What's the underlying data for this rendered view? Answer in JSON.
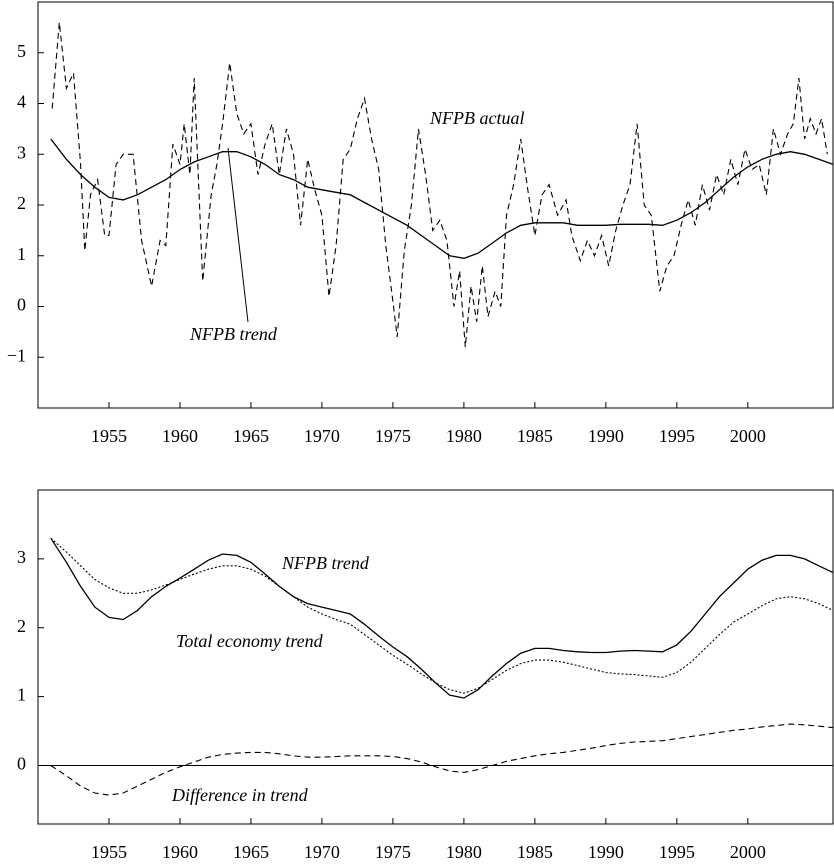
{
  "chart_data": [
    {
      "type": "line",
      "xlim": [
        1950,
        2006
      ],
      "ylim": [
        -2,
        6
      ],
      "xticks": [
        1955,
        1960,
        1965,
        1970,
        1975,
        1980,
        1985,
        1990,
        1995,
        2000
      ],
      "yticks": [
        {
          "value": -1,
          "label": "−1"
        },
        0,
        1,
        2,
        3,
        4,
        5
      ],
      "annotations": [
        "NFPB actual",
        "NFPB trend"
      ],
      "series": [
        {
          "name": "NFPB actual",
          "color": "#000000",
          "style": "dashed",
          "x": [
            1951.0,
            1951.5,
            1952.0,
            1952.5,
            1953.0,
            1953.3,
            1953.7,
            1954.2,
            1954.7,
            1955.0,
            1955.5,
            1956.0,
            1956.7,
            1957.3,
            1958.0,
            1958.6,
            1959.0,
            1959.5,
            1960.0,
            1960.3,
            1960.7,
            1961.0,
            1961.6,
            1962.2,
            1962.6,
            1963.0,
            1963.5,
            1964.0,
            1964.5,
            1965.0,
            1965.5,
            1966.0,
            1966.5,
            1967.0,
            1967.5,
            1968.0,
            1968.5,
            1969.0,
            1969.5,
            1970.0,
            1970.5,
            1971.0,
            1971.5,
            1972.0,
            1972.5,
            1973.0,
            1973.5,
            1974.0,
            1974.5,
            1975.0,
            1975.3,
            1975.8,
            1976.3,
            1976.8,
            1977.3,
            1977.8,
            1978.3,
            1978.8,
            1979.3,
            1979.7,
            1980.1,
            1980.5,
            1980.9,
            1981.3,
            1981.7,
            1982.2,
            1982.6,
            1983.0,
            1983.5,
            1984.0,
            1984.5,
            1985.0,
            1985.5,
            1986.0,
            1986.6,
            1987.2,
            1987.6,
            1988.2,
            1988.7,
            1989.2,
            1989.7,
            1990.2,
            1990.7,
            1991.2,
            1991.7,
            1992.2,
            1992.7,
            1993.2,
            1993.8,
            1994.3,
            1994.8,
            1995.3,
            1995.8,
            1996.3,
            1996.8,
            1997.3,
            1997.8,
            1998.3,
            1998.8,
            1999.3,
            1999.8,
            2000.3,
            2000.8,
            2001.3,
            2001.8,
            2002.3,
            2002.8,
            2003.2,
            2003.6,
            2004.0,
            2004.4,
            2004.8,
            2005.2,
            2005.6
          ],
          "values": [
            3.9,
            5.6,
            4.3,
            4.6,
            2.8,
            1.1,
            2.2,
            2.5,
            1.4,
            1.4,
            2.8,
            3.0,
            3.0,
            1.3,
            0.4,
            1.3,
            1.2,
            3.2,
            2.8,
            3.6,
            2.6,
            4.5,
            0.5,
            2.2,
            2.8,
            3.6,
            4.8,
            3.8,
            3.4,
            3.6,
            2.6,
            3.2,
            3.6,
            2.6,
            3.5,
            3.0,
            1.6,
            2.9,
            2.3,
            1.8,
            0.2,
            1.2,
            2.9,
            3.1,
            3.7,
            4.1,
            3.3,
            2.7,
            1.2,
            0.1,
            -0.6,
            1.1,
            2.0,
            3.5,
            2.6,
            1.5,
            1.7,
            1.3,
            0.0,
            0.7,
            -0.8,
            0.4,
            -0.3,
            0.8,
            -0.2,
            0.3,
            0.0,
            1.8,
            2.4,
            3.3,
            2.3,
            1.4,
            2.2,
            2.4,
            1.8,
            2.1,
            1.4,
            0.9,
            1.3,
            1.0,
            1.4,
            0.8,
            1.5,
            2.0,
            2.4,
            3.6,
            2.0,
            1.8,
            0.3,
            0.8,
            1.0,
            1.6,
            2.1,
            1.6,
            2.4,
            1.9,
            2.6,
            2.2,
            2.9,
            2.4,
            3.1,
            2.7,
            2.8,
            2.2,
            3.5,
            3.0,
            3.4,
            3.6,
            4.5,
            3.3,
            3.7,
            3.4,
            3.7,
            3.0
          ]
        },
        {
          "name": "NFPB trend",
          "color": "#000000",
          "style": "solid",
          "x": [
            1950.9,
            1952,
            1953,
            1954,
            1955,
            1956,
            1957,
            1958,
            1959,
            1960,
            1961,
            1962,
            1963,
            1964,
            1965,
            1966,
            1967,
            1968,
            1969,
            1970,
            1971,
            1972,
            1973,
            1974,
            1975,
            1976,
            1977,
            1978,
            1979,
            1980,
            1981,
            1982,
            1983,
            1984,
            1985,
            1986,
            1987,
            1988,
            1989,
            1990,
            1991,
            1992,
            1993,
            1994,
            1995,
            1996,
            1997,
            1998,
            1999,
            2000,
            2001,
            2002,
            2003,
            2004,
            2005,
            2006
          ],
          "values": [
            3.3,
            2.9,
            2.6,
            2.35,
            2.15,
            2.1,
            2.2,
            2.35,
            2.5,
            2.7,
            2.85,
            2.95,
            3.05,
            3.05,
            2.95,
            2.8,
            2.6,
            2.5,
            2.35,
            2.3,
            2.25,
            2.2,
            2.05,
            1.9,
            1.75,
            1.6,
            1.4,
            1.2,
            1.0,
            0.95,
            1.05,
            1.25,
            1.45,
            1.6,
            1.65,
            1.65,
            1.65,
            1.6,
            1.6,
            1.6,
            1.62,
            1.62,
            1.62,
            1.6,
            1.7,
            1.85,
            2.05,
            2.3,
            2.55,
            2.75,
            2.9,
            3.0,
            3.05,
            3.0,
            2.9,
            2.8
          ]
        }
      ]
    },
    {
      "type": "line",
      "xlim": [
        1950,
        2006
      ],
      "ylim": [
        -0.85,
        4
      ],
      "xticks": [
        1955,
        1960,
        1965,
        1970,
        1975,
        1980,
        1985,
        1990,
        1995,
        2000
      ],
      "yticks": [
        0,
        1,
        2,
        3
      ],
      "annotations": [
        "NFPB trend",
        "Total economy trend",
        "Difference in trend"
      ],
      "series": [
        {
          "name": "NFPB trend",
          "color": "#000000",
          "style": "solid",
          "x": [
            1950.9,
            1952,
            1953,
            1954,
            1955,
            1956,
            1957,
            1958,
            1959,
            1960,
            1961,
            1962,
            1963,
            1964,
            1965,
            1966,
            1967,
            1968,
            1969,
            1970,
            1971,
            1972,
            1973,
            1974,
            1975,
            1976,
            1977,
            1978,
            1979,
            1980,
            1981,
            1982,
            1983,
            1984,
            1985,
            1986,
            1987,
            1988,
            1989,
            1990,
            1991,
            1992,
            1993,
            1994,
            1995,
            1996,
            1997,
            1998,
            1999,
            2000,
            2001,
            2002,
            2003,
            2004,
            2005,
            2006
          ],
          "values": [
            3.3,
            2.95,
            2.6,
            2.3,
            2.15,
            2.12,
            2.25,
            2.45,
            2.6,
            2.72,
            2.85,
            2.98,
            3.07,
            3.05,
            2.95,
            2.78,
            2.6,
            2.45,
            2.35,
            2.3,
            2.25,
            2.2,
            2.05,
            1.88,
            1.72,
            1.58,
            1.4,
            1.2,
            1.02,
            0.98,
            1.1,
            1.3,
            1.48,
            1.63,
            1.7,
            1.7,
            1.67,
            1.65,
            1.64,
            1.64,
            1.66,
            1.67,
            1.66,
            1.65,
            1.75,
            1.95,
            2.2,
            2.45,
            2.65,
            2.85,
            2.98,
            3.05,
            3.05,
            3.0,
            2.9,
            2.8
          ]
        },
        {
          "name": "Total economy trend",
          "color": "#000000",
          "style": "dotted",
          "x": [
            1950.9,
            1952,
            1953,
            1954,
            1955,
            1956,
            1957,
            1958,
            1959,
            1960,
            1961,
            1962,
            1963,
            1964,
            1965,
            1966,
            1967,
            1968,
            1969,
            1970,
            1971,
            1972,
            1973,
            1974,
            1975,
            1976,
            1977,
            1978,
            1979,
            1980,
            1981,
            1982,
            1983,
            1984,
            1985,
            1986,
            1987,
            1988,
            1989,
            1990,
            1991,
            1992,
            1993,
            1994,
            1995,
            1996,
            1997,
            1998,
            1999,
            2000,
            2001,
            2002,
            2003,
            2004,
            2005,
            2006
          ],
          "values": [
            3.3,
            3.1,
            2.9,
            2.7,
            2.58,
            2.5,
            2.5,
            2.55,
            2.62,
            2.7,
            2.78,
            2.85,
            2.9,
            2.9,
            2.85,
            2.75,
            2.6,
            2.45,
            2.3,
            2.2,
            2.12,
            2.05,
            1.9,
            1.75,
            1.6,
            1.47,
            1.33,
            1.2,
            1.1,
            1.05,
            1.12,
            1.25,
            1.38,
            1.48,
            1.53,
            1.53,
            1.5,
            1.45,
            1.4,
            1.35,
            1.33,
            1.32,
            1.3,
            1.28,
            1.35,
            1.5,
            1.7,
            1.9,
            2.08,
            2.2,
            2.32,
            2.42,
            2.45,
            2.42,
            2.35,
            2.25
          ]
        },
        {
          "name": "Difference in trend",
          "color": "#000000",
          "style": "dashed",
          "x": [
            1950.9,
            1952,
            1953,
            1954,
            1955,
            1956,
            1957,
            1958,
            1959,
            1960,
            1961,
            1962,
            1963,
            1964,
            1965,
            1966,
            1967,
            1968,
            1969,
            1970,
            1971,
            1972,
            1973,
            1974,
            1975,
            1976,
            1977,
            1978,
            1979,
            1980,
            1981,
            1982,
            1983,
            1984,
            1985,
            1986,
            1987,
            1988,
            1989,
            1990,
            1991,
            1992,
            1993,
            1994,
            1995,
            1996,
            1997,
            1998,
            1999,
            2000,
            2001,
            2002,
            2003,
            2004,
            2005,
            2006
          ],
          "values": [
            0.0,
            -0.15,
            -0.3,
            -0.4,
            -0.43,
            -0.4,
            -0.3,
            -0.2,
            -0.1,
            -0.02,
            0.05,
            0.12,
            0.16,
            0.18,
            0.19,
            0.19,
            0.17,
            0.14,
            0.12,
            0.12,
            0.13,
            0.14,
            0.14,
            0.14,
            0.13,
            0.1,
            0.05,
            -0.02,
            -0.08,
            -0.1,
            -0.06,
            0.0,
            0.06,
            0.1,
            0.14,
            0.17,
            0.19,
            0.22,
            0.25,
            0.29,
            0.32,
            0.34,
            0.35,
            0.36,
            0.39,
            0.42,
            0.45,
            0.48,
            0.51,
            0.53,
            0.56,
            0.58,
            0.6,
            0.59,
            0.57,
            0.55
          ]
        }
      ]
    }
  ]
}
